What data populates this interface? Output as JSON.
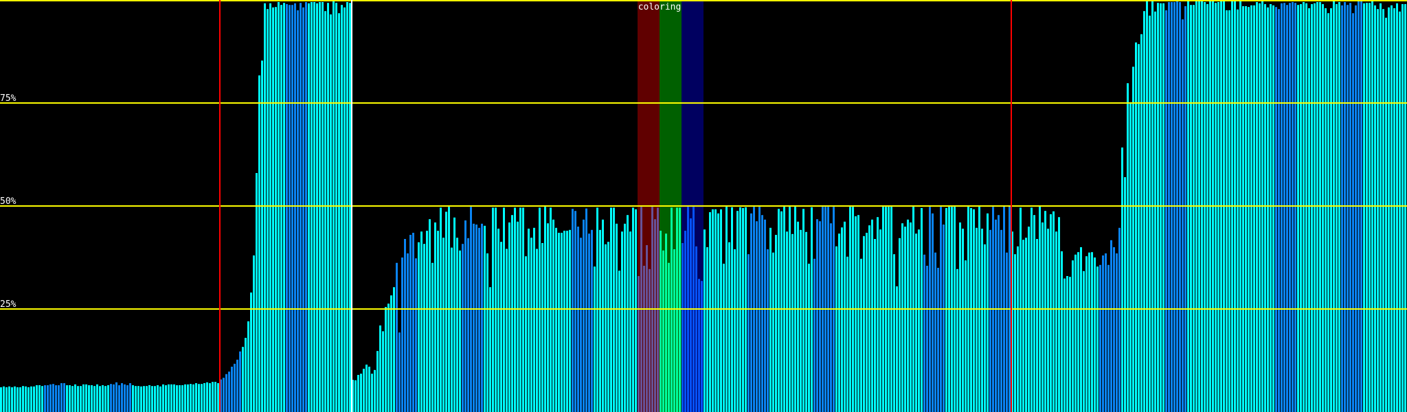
{
  "chart_data": {
    "type": "bar",
    "title": "",
    "xlabel": "",
    "ylabel": "",
    "ylim": [
      0,
      100
    ],
    "y_unit": "%",
    "grid": true,
    "y_ticks": [
      {
        "value": 25,
        "label": "25%"
      },
      {
        "value": 50,
        "label": "50%"
      },
      {
        "value": 75,
        "label": "75%"
      },
      {
        "value": 100,
        "label": ""
      }
    ],
    "colors": {
      "background": "#000000",
      "bar": "#00ffff",
      "bar_alt": "#0a84f4",
      "grid": "#ffff00"
    },
    "alt_color_ranges": [
      [
        16,
        23
      ],
      [
        40,
        47
      ],
      [
        80,
        87
      ],
      [
        104,
        111
      ],
      [
        144,
        151
      ],
      [
        168,
        175
      ],
      [
        208,
        215
      ],
      [
        232,
        239
      ],
      [
        248,
        255
      ],
      [
        272,
        279
      ],
      [
        296,
        303
      ],
      [
        336,
        343
      ],
      [
        360,
        367
      ],
      [
        400,
        407
      ],
      [
        424,
        431
      ],
      [
        464,
        471
      ],
      [
        488,
        495
      ]
    ],
    "markers": [
      {
        "bar": 80,
        "color": "#ff0000"
      },
      {
        "bar": 128,
        "color": "#ffffff"
      },
      {
        "bar": 368,
        "color": "#ff0000"
      }
    ],
    "bands": {
      "label": "coloring",
      "segments": [
        {
          "start": 232,
          "end": 239,
          "color": "#ff0000"
        },
        {
          "start": 240,
          "end": 247,
          "color": "#00ff00"
        },
        {
          "start": 248,
          "end": 255,
          "color": "#0000ff"
        }
      ]
    },
    "values": [
      6.0,
      6.2,
      6.0,
      6.2,
      6.0,
      6.2,
      6.0,
      6.0,
      6.3,
      6.2,
      6.0,
      6.2,
      6.2,
      6.5,
      6.5,
      6.3,
      6.5,
      6.5,
      6.7,
      6.8,
      6.5,
      6.5,
      7.0,
      7.0,
      6.5,
      6.5,
      6.3,
      6.7,
      6.3,
      6.3,
      6.7,
      6.7,
      6.5,
      6.5,
      6.3,
      6.7,
      6.3,
      6.5,
      6.3,
      6.5,
      6.8,
      6.7,
      7.2,
      6.5,
      7.0,
      6.7,
      6.5,
      7.0,
      6.5,
      6.3,
      6.3,
      6.2,
      6.3,
      6.3,
      6.5,
      6.3,
      6.3,
      6.5,
      6.2,
      6.7,
      6.5,
      6.7,
      6.7,
      6.7,
      6.5,
      6.5,
      6.5,
      6.7,
      6.7,
      6.8,
      6.7,
      7.0,
      6.8,
      6.8,
      7.0,
      7.2,
      7.0,
      7.3,
      7.3,
      7.0,
      7.9,
      8.3,
      9.2,
      9.8,
      11,
      11.7,
      12.7,
      14.7,
      15.8,
      18,
      22,
      29,
      38,
      58,
      81.7,
      85.3,
      99.2,
      97.8,
      99.2,
      98.2,
      98.3,
      99.5,
      98.8,
      99.3,
      99,
      98.8,
      98.8,
      99.2,
      97.5,
      99.3,
      98.2,
      99.5,
      99.2,
      99.5,
      99.5,
      99.2,
      99.5,
      99.5,
      97.3,
      99.3,
      96.5,
      99.7,
      99.3,
      96.8,
      98.8,
      98.2,
      99.5,
      99.3,
      7.8,
      7.7,
      9.0,
      9.3,
      10.5,
      11.5,
      11,
      9.3,
      10.2,
      14.8,
      21,
      19.6,
      25.5,
      26.3,
      28.3,
      30.3,
      36.2,
      19.3,
      37.5,
      42,
      38.5,
      43,
      43.5,
      37.3,
      41.2,
      43.8,
      40.8,
      44,
      46.8,
      36.2,
      46,
      44,
      49.6,
      42.3,
      48.6,
      49.8,
      39.9,
      47.2,
      42.3,
      39.2,
      40.8,
      46.5,
      42.2,
      49.8,
      45.7,
      45.5,
      44.7,
      45.7,
      45.2,
      38.5,
      30.3,
      49.6,
      49.6,
      44.5,
      41.3,
      49.6,
      39.6,
      46,
      47.8,
      49.6,
      46.2,
      49.6,
      49.6,
      37.8,
      44.5,
      42.3,
      44.7,
      39.6,
      49.6,
      41,
      49.8,
      45.8,
      49.6,
      46.7,
      44.7,
      43.5,
      43.5,
      44,
      44,
      44.2,
      49.3,
      48.8,
      45,
      42.3,
      46.7,
      49.4,
      43.3,
      44.2,
      35.3,
      49.6,
      44.2,
      46.7,
      40.7,
      41.3,
      49.6,
      49.6,
      45.7,
      34.3,
      43.8,
      45.7,
      47.8,
      43.8,
      49.6,
      49.2,
      33,
      49.8,
      35.5,
      40.5,
      34.7,
      49.8,
      46.8,
      49.6,
      44,
      39.2,
      43.3,
      36.2,
      49.6,
      39.5,
      49.6,
      49.6,
      41,
      44,
      49.8,
      47.0,
      49.8,
      40.2,
      32.3,
      31.8,
      44.3,
      40.0,
      48.5,
      49.2,
      49.2,
      48.2,
      49.2,
      36.0,
      49.8,
      41.2,
      49.7,
      39.5,
      48.8,
      49.7,
      49.5,
      49.7,
      38.3,
      48.2,
      49.8,
      46.3,
      49.8,
      47.8,
      46.7,
      39.5,
      44.7,
      38.7,
      43.0,
      49.3,
      48.7,
      49.8,
      43.8,
      49.8,
      43.2,
      49.8,
      46.2,
      44.2,
      49.3,
      43.7,
      36.0,
      49.7,
      37.2,
      46.8,
      46.3,
      49.8,
      49.8,
      49.8,
      45.8,
      49.8,
      40.2,
      43.3,
      44.8,
      46.2,
      37.7,
      49.8,
      49.8,
      47.5,
      47.8,
      37.2,
      42.7,
      43.5,
      45.3,
      46.7,
      42.0,
      47.3,
      44.3,
      49.8,
      49.8,
      49.8,
      49.8,
      38.3,
      30.5,
      42.2,
      45.8,
      45.0,
      46.7,
      46.0,
      49.8,
      43.3,
      44.3,
      49.5,
      38.2,
      35.5,
      49.8,
      48.2,
      38.7,
      35.0,
      49.8,
      45.5,
      49.5,
      49.8,
      49.8,
      49.8,
      34.7,
      46.0,
      44.5,
      36.8,
      49.8,
      49.5,
      49.2,
      44.7,
      49.8,
      44.5,
      40.7,
      48.2,
      44.2,
      49.8,
      46.7,
      47.8,
      44.2,
      50,
      38.7,
      50,
      43.8,
      38.3,
      40.2,
      49.6,
      41.8,
      42.3,
      45,
      49.6,
      47.8,
      42,
      50,
      46,
      48.8,
      44.5,
      48,
      48.7,
      43.8,
      47.3,
      39,
      32.4,
      33,
      32.8,
      36.8,
      38.2,
      38.8,
      40,
      34.2,
      37.8,
      38.7,
      38.8,
      37.5,
      35.3,
      35.7,
      38,
      38.5,
      35.7,
      41.7,
      40,
      38.5,
      44.7,
      64.2,
      57,
      79.8,
      75.2,
      83.8,
      89.7,
      89.3,
      91.7,
      97.3,
      99.7,
      96.2,
      99.7,
      97.2,
      99.3,
      99.2,
      99.2,
      97.5,
      99.5,
      99.5,
      99.5,
      99.7,
      99.5,
      95.3,
      98.5,
      99.7,
      98.8,
      98.8,
      99.7,
      99.7,
      99.7,
      99.5,
      99,
      99.7,
      99.7,
      99.3,
      99.5,
      99.7,
      99.7,
      97.5,
      97.5,
      99.7,
      99.7,
      97.7,
      99.7,
      98.5,
      98.5,
      98.3,
      98.7,
      98.7,
      99.5,
      99.2,
      99.7,
      99,
      98.2,
      99,
      98.7,
      98.3,
      97.8,
      99.2,
      99.3,
      98.8,
      99.3,
      99.5,
      99.3,
      98.8,
      99,
      99.5,
      99.2,
      98,
      99,
      99.2,
      99.5,
      99.5,
      99,
      98,
      96.8,
      98,
      99.7,
      99,
      99.5,
      98.7,
      99.5,
      98.8,
      99.3,
      96.8,
      98.7,
      99.7,
      99.7,
      99.2,
      99.3,
      99.3,
      99.7,
      98.7,
      97.8,
      99.2,
      97.8,
      95.7,
      98.2,
      98.7,
      98,
      99.2,
      97.2,
      99,
      99
    ]
  }
}
